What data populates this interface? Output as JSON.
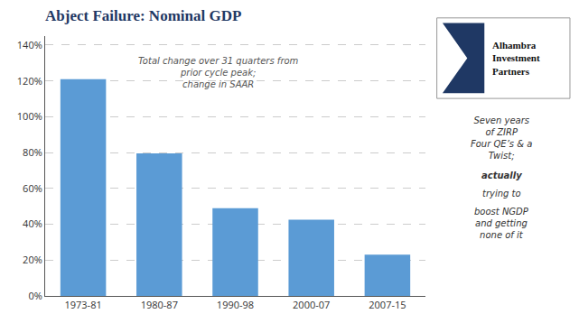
{
  "chart_data": {
    "type": "bar",
    "title": "Abject Failure: Nominal GDP",
    "subtitle": "Total change over 31 quarters from\nprior cycle peak;\nchange in SAAR",
    "categories": [
      "1973-81",
      "1980-87",
      "1990-98",
      "2000-07",
      "2007-15"
    ],
    "values": [
      1.21,
      0.795,
      0.49,
      0.425,
      0.23
    ],
    "color": "#5B9BD5",
    "ylim": [
      0,
      1.45
    ],
    "yticks": [
      {
        "value": 0,
        "label": "0%"
      },
      {
        "value": 0.2,
        "label": "20%"
      },
      {
        "value": 0.4,
        "label": "40%"
      },
      {
        "value": 0.6,
        "label": "60%"
      },
      {
        "value": 0.8,
        "label": "80%"
      },
      {
        "value": 1.0,
        "label": "100%"
      },
      {
        "value": 1.2,
        "label": "120%"
      },
      {
        "value": 1.4,
        "label": "140%"
      }
    ],
    "grid": true,
    "annotations": [
      "Seven years\nof ZIRP\nFour QE’s & a\nTwist;",
      "actually",
      "trying to",
      "boost NGDP\nand getting\nnone of it",
      "Alhambra\nInvestment\nPartners"
    ]
  }
}
